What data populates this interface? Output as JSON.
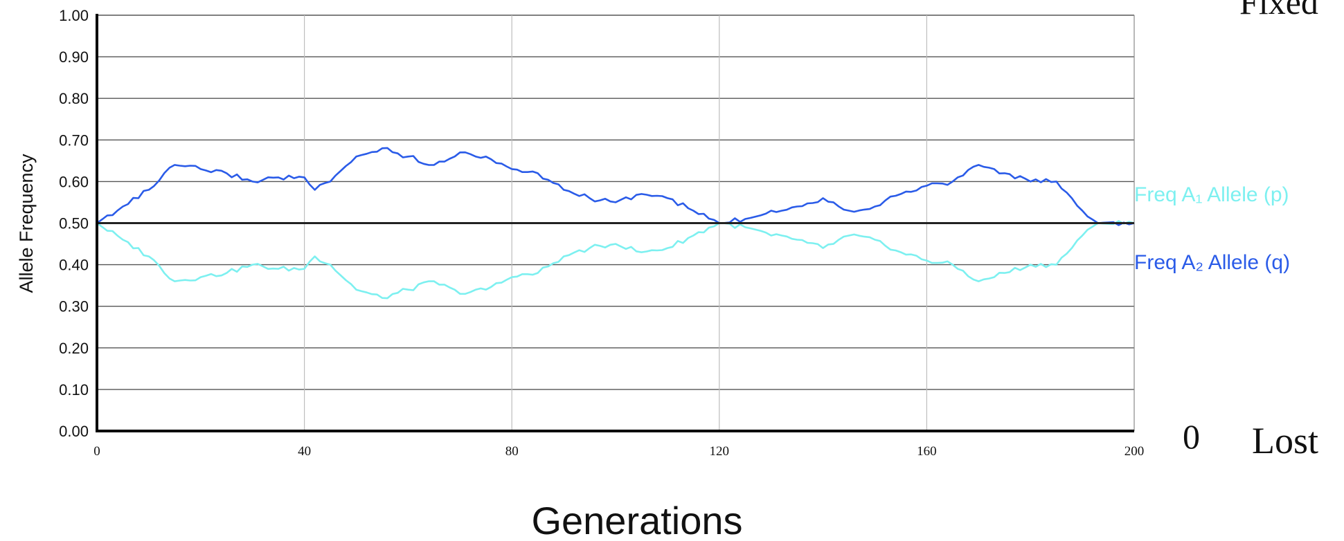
{
  "chart_data": {
    "type": "line",
    "xlabel": "Generations",
    "ylabel": "Allele Frequency",
    "xlim": [
      0,
      200
    ],
    "ylim": [
      0,
      1
    ],
    "x_ticks": [
      "0",
      "40",
      "80",
      "120",
      "160",
      "200"
    ],
    "y_ticks": [
      "0.00",
      "0.10",
      "0.20",
      "0.30",
      "0.40",
      "0.50",
      "0.60",
      "0.70",
      "0.80",
      "0.90",
      "1.00"
    ],
    "grid": true,
    "reference_line": 0.5,
    "right_annotations": {
      "top": "Fixed",
      "zero": "0",
      "lost": "Lost"
    },
    "series": [
      {
        "name": "Freq A₁ Allele (p)",
        "color": "#7df0f0",
        "x": [
          0,
          5,
          10,
          15,
          20,
          25,
          30,
          35,
          40,
          42,
          45,
          50,
          55,
          60,
          65,
          70,
          75,
          80,
          85,
          90,
          95,
          100,
          105,
          110,
          115,
          120,
          125,
          130,
          135,
          140,
          145,
          150,
          155,
          160,
          165,
          170,
          175,
          180,
          185,
          190,
          193,
          200
        ],
        "y": [
          0.5,
          0.46,
          0.42,
          0.36,
          0.37,
          0.38,
          0.4,
          0.39,
          0.39,
          0.42,
          0.4,
          0.34,
          0.32,
          0.34,
          0.36,
          0.33,
          0.34,
          0.37,
          0.38,
          0.42,
          0.44,
          0.45,
          0.43,
          0.44,
          0.47,
          0.5,
          0.49,
          0.47,
          0.46,
          0.44,
          0.47,
          0.46,
          0.43,
          0.41,
          0.4,
          0.36,
          0.38,
          0.4,
          0.4,
          0.47,
          0.5,
          0.5
        ]
      },
      {
        "name": "Freq A₂ Allele (q)",
        "color": "#2a5be8",
        "x": [
          0,
          5,
          10,
          15,
          20,
          25,
          30,
          35,
          40,
          42,
          45,
          50,
          55,
          60,
          65,
          70,
          75,
          80,
          85,
          90,
          95,
          100,
          105,
          110,
          115,
          120,
          125,
          130,
          135,
          140,
          145,
          150,
          155,
          160,
          165,
          170,
          175,
          180,
          185,
          190,
          193,
          200
        ],
        "y": [
          0.5,
          0.54,
          0.58,
          0.64,
          0.63,
          0.62,
          0.6,
          0.61,
          0.61,
          0.58,
          0.6,
          0.66,
          0.68,
          0.66,
          0.64,
          0.67,
          0.66,
          0.63,
          0.62,
          0.58,
          0.56,
          0.55,
          0.57,
          0.56,
          0.53,
          0.5,
          0.51,
          0.53,
          0.54,
          0.56,
          0.53,
          0.54,
          0.57,
          0.59,
          0.6,
          0.64,
          0.62,
          0.6,
          0.6,
          0.53,
          0.5,
          0.5
        ]
      }
    ]
  }
}
